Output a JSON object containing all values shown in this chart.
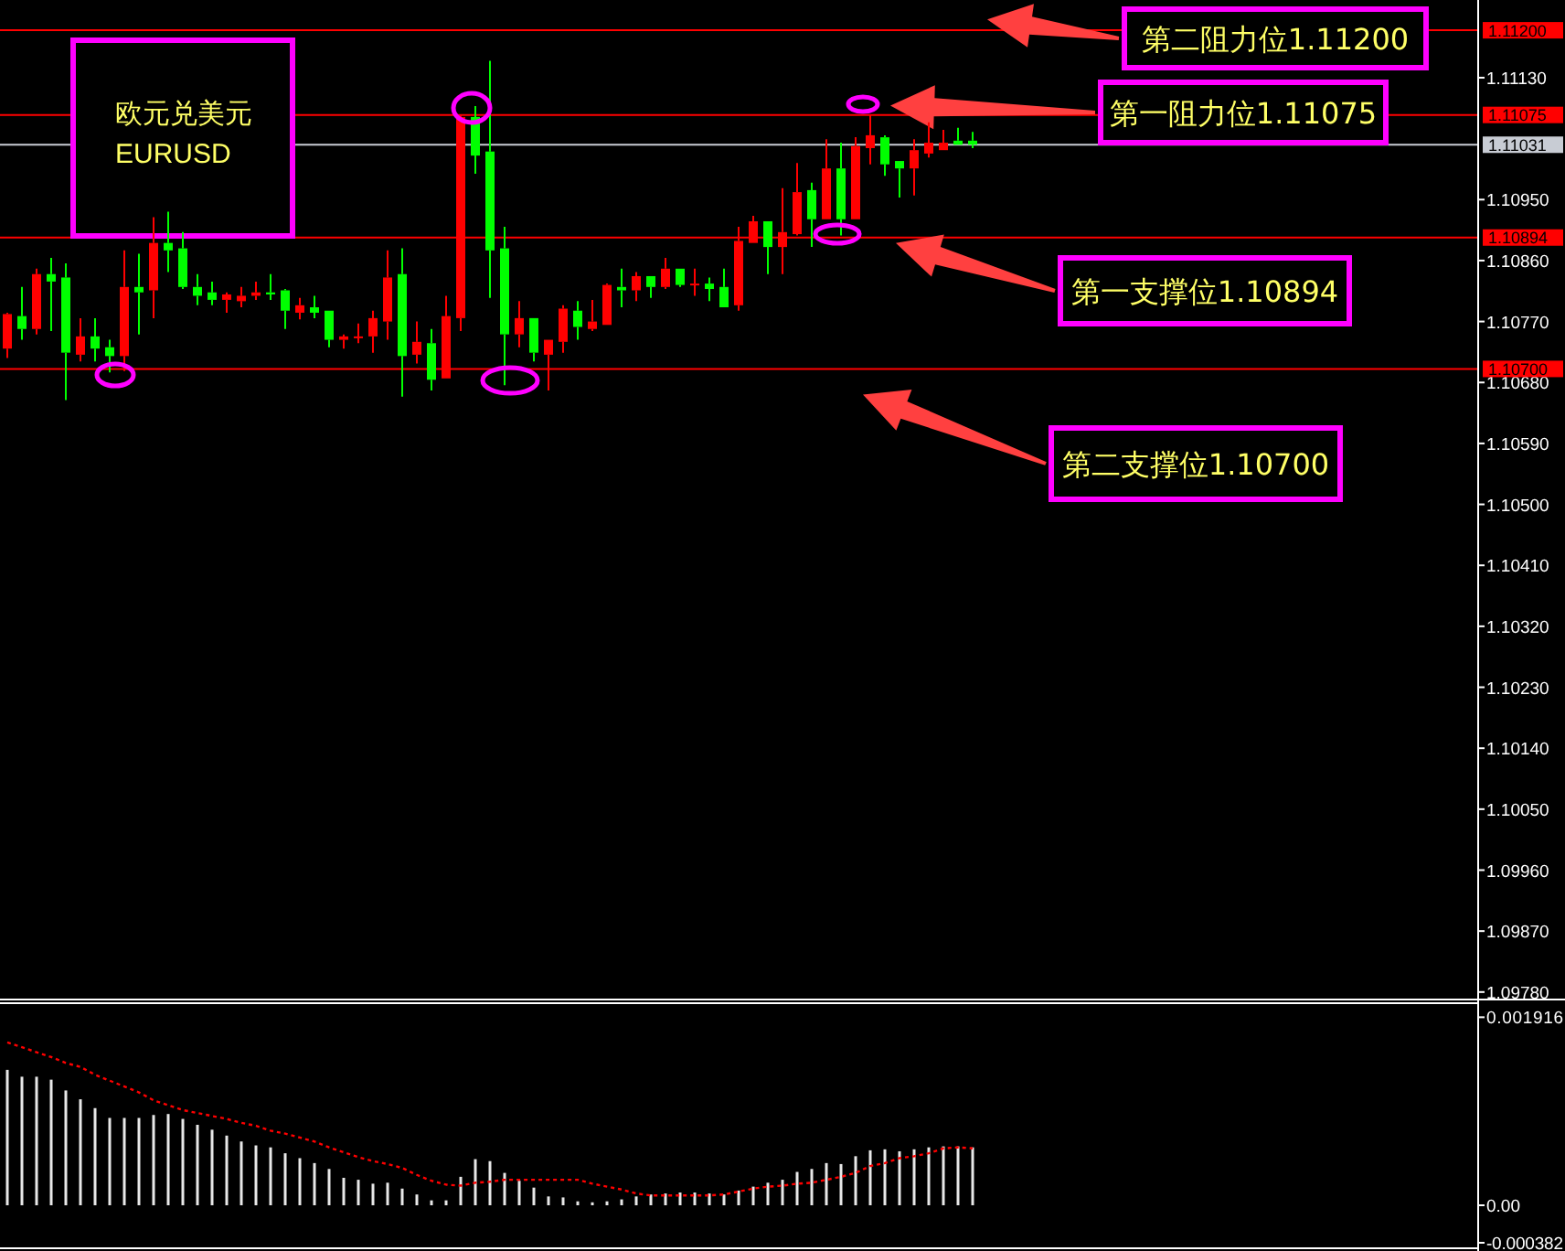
{
  "chart_data": [
    {
      "type": "candlestick",
      "title": "欧元兑美元",
      "subtitle": "EURUSD",
      "tick_labels": "y",
      "categories": [
        null,
        null,
        null,
        null,
        null,
        null,
        null,
        null,
        null,
        null,
        null,
        null,
        null,
        null,
        null,
        null,
        null,
        null,
        null,
        null,
        null,
        null,
        null,
        null,
        null,
        null,
        null,
        null,
        null,
        null,
        null,
        null,
        null,
        null,
        null,
        null,
        null,
        null,
        null,
        null,
        null,
        null,
        null,
        null,
        null,
        null,
        null,
        null,
        null,
        null,
        null,
        null,
        null,
        null,
        null,
        null,
        null,
        null,
        null,
        null,
        null,
        null,
        null,
        null,
        null,
        null,
        null,
        null,
        null,
        null,
        null,
        null,
        null,
        null,
        null,
        null,
        null,
        null,
        null,
        null,
        null,
        null,
        null,
        null,
        null,
        null,
        null,
        null,
        null,
        null,
        null,
        null,
        null,
        null,
        null,
        null,
        null,
        null,
        null,
        null,
        null
      ],
      "ohlc": [
        [
          1.1073,
          1.10783,
          1.10716,
          1.10781
        ],
        [
          1.10778,
          1.10821,
          1.10743,
          1.10759
        ],
        [
          1.10759,
          1.10848,
          1.10751,
          1.1084
        ],
        [
          1.1084,
          1.10864,
          1.10756,
          1.10829
        ],
        [
          1.10835,
          1.10856,
          1.10654,
          1.10724
        ],
        [
          1.10721,
          1.10775,
          1.10711,
          1.10748
        ],
        [
          1.10748,
          1.10775,
          1.10711,
          1.1073
        ],
        [
          1.10732,
          1.10743,
          1.10695,
          1.10719
        ],
        [
          1.10719,
          1.10875,
          1.10697,
          1.10821
        ],
        [
          1.10821,
          1.1087,
          1.10751,
          1.10813
        ],
        [
          1.10816,
          1.10924,
          1.10775,
          1.10886
        ],
        [
          1.10886,
          1.10932,
          1.10843,
          1.10875
        ],
        [
          1.10878,
          1.10902,
          1.10818,
          1.10821
        ],
        [
          1.10821,
          1.1084,
          1.10794,
          1.10808
        ],
        [
          1.10813,
          1.10829,
          1.10794,
          1.10802
        ],
        [
          1.10802,
          1.10813,
          1.10783,
          1.1081
        ],
        [
          1.108,
          1.10821,
          1.10791,
          1.10808
        ],
        [
          1.10808,
          1.10829,
          1.10802,
          1.10813
        ],
        [
          1.10813,
          1.1084,
          1.10802,
          1.1081
        ],
        [
          1.10816,
          1.10818,
          1.10759,
          1.10786
        ],
        [
          1.10783,
          1.10805,
          1.10773,
          1.10794
        ],
        [
          1.10791,
          1.10808,
          1.10775,
          1.10783
        ],
        [
          1.10786,
          1.10786,
          1.10732,
          1.10743
        ],
        [
          1.10743,
          1.10751,
          1.1073,
          1.10748
        ],
        [
          1.10746,
          1.10767,
          1.10738,
          1.10748
        ],
        [
          1.10748,
          1.10786,
          1.10724,
          1.10775
        ],
        [
          1.1077,
          1.10875,
          1.10743,
          1.10835
        ],
        [
          1.1084,
          1.10878,
          1.10659,
          1.10719
        ],
        [
          1.10721,
          1.1077,
          1.10708,
          1.1074
        ],
        [
          1.10738,
          1.10759,
          1.10668,
          1.10684
        ],
        [
          1.10686,
          1.10808,
          1.10686,
          1.10778
        ],
        [
          1.10775,
          1.11075,
          1.10756,
          1.11072
        ],
        [
          1.11072,
          1.11088,
          1.10988,
          1.11015
        ],
        [
          1.11021,
          1.11155,
          1.10805,
          1.10875
        ],
        [
          1.10878,
          1.1091,
          1.10676,
          1.10751
        ],
        [
          1.10751,
          1.108,
          1.10732,
          1.10775
        ],
        [
          1.10775,
          1.10775,
          1.10711,
          1.10724
        ],
        [
          1.10721,
          1.10743,
          1.10668,
          1.10743
        ],
        [
          1.1074,
          1.10794,
          1.10724,
          1.10789
        ],
        [
          1.10786,
          1.108,
          1.10743,
          1.10762
        ],
        [
          1.10759,
          1.10802,
          1.10756,
          1.1077
        ],
        [
          1.10765,
          1.10826,
          1.10765,
          1.10824
        ],
        [
          1.10821,
          1.10848,
          1.10791,
          1.10816
        ],
        [
          1.10816,
          1.10843,
          1.108,
          1.10837
        ],
        [
          1.10837,
          1.10837,
          1.10805,
          1.10821
        ],
        [
          1.10821,
          1.10864,
          1.10818,
          1.10848
        ],
        [
          1.10848,
          1.10848,
          1.10821,
          1.10824
        ],
        [
          1.10824,
          1.10848,
          1.10808,
          1.10826
        ],
        [
          1.10826,
          1.10835,
          1.108,
          1.10818
        ],
        [
          1.10821,
          1.10848,
          1.10791,
          1.10791
        ],
        [
          1.10794,
          1.1091,
          1.10786,
          1.10889
        ],
        [
          1.10886,
          1.10926,
          1.10886,
          1.10918
        ],
        [
          1.10918,
          1.10918,
          1.1084,
          1.1088
        ],
        [
          1.1088,
          1.10967,
          1.1084,
          1.10902
        ],
        [
          1.10899,
          1.11004,
          1.10897,
          1.10961
        ],
        [
          1.10964,
          1.10975,
          1.1088,
          1.10921
        ],
        [
          1.10921,
          1.11039,
          1.10921,
          1.10996
        ],
        [
          1.10996,
          1.11034,
          1.10897,
          1.10921
        ],
        [
          1.10921,
          1.11042,
          1.10921,
          1.11029
        ],
        [
          1.11026,
          1.11075,
          1.11002,
          1.11045
        ],
        [
          1.11042,
          1.11045,
          1.10985,
          1.11002
        ],
        [
          1.11007,
          1.11007,
          1.10953,
          1.10996
        ],
        [
          1.10996,
          1.11039,
          1.10956,
          1.11023
        ],
        [
          1.11018,
          1.11064,
          1.11012,
          1.11034
        ],
        [
          1.11023,
          1.11053,
          1.11023,
          1.11034
        ],
        [
          1.11037,
          1.11056,
          1.11031,
          1.11031
        ],
        [
          1.11037,
          1.1105,
          1.11026,
          1.11031
        ],
        null,
        null,
        null,
        null,
        null,
        null,
        null,
        null,
        null,
        null,
        null,
        null,
        null,
        null,
        null,
        null,
        null,
        null,
        null,
        null,
        null,
        null,
        null,
        null,
        null,
        null,
        null,
        null,
        null,
        null,
        null,
        null,
        null,
        null
      ],
      "colors": [
        "#ff0000",
        "#00ff00",
        "#ff0000",
        "#00ff00",
        "#00ff00",
        "#ff0000",
        "#00ff00",
        "#00ff00",
        "#ff0000",
        "#00ff00",
        "#ff0000",
        "#00ff00",
        "#00ff00",
        "#00ff00",
        "#00ff00",
        "#ff0000",
        "#ff0000",
        "#ff0000",
        "#00ff00",
        "#00ff00",
        "#ff0000",
        "#00ff00",
        "#00ff00",
        "#ff0000",
        "#ff0000",
        "#ff0000",
        "#ff0000",
        "#00ff00",
        "#ff0000",
        "#00ff00",
        "#ff0000",
        "#ff0000",
        "#00ff00",
        "#00ff00",
        "#00ff00",
        "#ff0000",
        "#00ff00",
        "#ff0000",
        "#ff0000",
        "#00ff00",
        "#ff0000",
        "#ff0000",
        "#00ff00",
        "#ff0000",
        "#00ff00",
        "#ff0000",
        "#00ff00",
        "#ff0000",
        "#00ff00",
        "#00ff00",
        "#ff0000",
        "#ff0000",
        "#00ff00",
        "#ff0000",
        "#ff0000",
        "#00ff00",
        "#ff0000",
        "#00ff00",
        "#ff0000",
        "#ff0000",
        "#00ff00",
        "#00ff00",
        "#ff0000",
        "#ff0000",
        "#ff0000",
        "#00ff00",
        "#00ff00",
        null,
        null,
        null,
        null,
        null,
        null,
        null,
        null,
        null,
        null,
        null,
        null,
        null,
        null,
        null,
        null,
        null,
        null,
        null,
        null,
        null,
        null,
        null,
        null,
        null,
        null,
        null,
        null,
        null,
        null,
        null,
        null,
        null,
        null
      ],
      "ylim": [
        1.09773,
        1.11242
      ],
      "yticks": [
        {
          "value": 1.0978,
          "label": "1.09780"
        },
        {
          "value": 1.0987,
          "label": "1.09870"
        },
        {
          "value": 1.0996,
          "label": "1.09960"
        },
        {
          "value": 1.1005,
          "label": "1.10050"
        },
        {
          "value": 1.1014,
          "label": "1.10140"
        },
        {
          "value": 1.1023,
          "label": "1.10230"
        },
        {
          "value": 1.1032,
          "label": "1.10320"
        },
        {
          "value": 1.1041,
          "label": "1.10410"
        },
        {
          "value": 1.105,
          "label": "1.10500"
        },
        {
          "value": 1.1059,
          "label": "1.10590"
        },
        {
          "value": 1.1068,
          "label": "1.10680"
        },
        {
          "value": 1.1077,
          "label": "1.10770"
        },
        {
          "value": 1.1086,
          "label": "1.10860"
        },
        {
          "value": 1.1095,
          "label": "1.10950"
        },
        {
          "value": 1.1113,
          "label": "1.11130"
        }
      ],
      "ref_lines": [
        {
          "axis": "y",
          "value": 1.112,
          "label": "1.11200",
          "color": "#ff0000"
        },
        {
          "axis": "y",
          "value": 1.11075,
          "label": "1.11075",
          "color": "#ff0000"
        },
        {
          "axis": "y",
          "value": 1.11031,
          "label": "1.11031",
          "color": "#c8ccd4"
        },
        {
          "axis": "y",
          "value": 1.10894,
          "label": "1.10894",
          "color": "#ff0000"
        },
        {
          "axis": "y",
          "value": 1.107,
          "label": "1.10700",
          "color": "#ff0000"
        }
      ],
      "annotations": [
        {
          "text": "第二阻力位1.11200",
          "y": 1.112
        },
        {
          "text": "第一阻力位1.11075",
          "y": 1.11075
        },
        {
          "text": "第一支撑位1.10894",
          "y": 1.10894
        },
        {
          "text": "第二支撑位1.10700",
          "y": 1.107
        }
      ]
    },
    {
      "type": "bar",
      "tick_labels": "y",
      "categories": [
        null,
        null,
        null,
        null,
        null,
        null,
        null,
        null,
        null,
        null,
        null,
        null,
        null,
        null,
        null,
        null,
        null,
        null,
        null,
        null,
        null,
        null,
        null,
        null,
        null,
        null,
        null,
        null,
        null,
        null,
        null,
        null,
        null,
        null,
        null,
        null,
        null,
        null,
        null,
        null,
        null,
        null,
        null,
        null,
        null,
        null,
        null,
        null,
        null,
        null,
        null,
        null,
        null,
        null,
        null,
        null,
        null,
        null,
        null,
        null,
        null,
        null,
        null,
        null,
        null,
        null,
        null,
        null,
        null,
        null,
        null,
        null,
        null,
        null,
        null,
        null,
        null,
        null,
        null,
        null,
        null,
        null,
        null,
        null,
        null,
        null,
        null,
        null,
        null,
        null,
        null,
        null,
        null,
        null,
        null,
        null,
        null,
        null,
        null,
        null,
        null
      ],
      "ylim": [
        -0.00041,
        0.00205
      ],
      "yticks": [
        0.001916,
        {
          "value": 0,
          "label": "0.00"
        },
        -0.000382
      ],
      "series": [
        {
          "type": "bar",
          "color": "#e8e8e8",
          "values": [
            0.00138,
            0.00131,
            0.00131,
            0.00128,
            0.00117,
            0.00108,
            0.00099,
            0.00089,
            0.00089,
            0.00089,
            0.00092,
            0.00093,
            0.00088,
            0.00082,
            0.00077,
            0.00071,
            0.00065,
            0.00061,
            0.00059,
            0.00053,
            0.00048,
            0.00043,
            0.00037,
            0.00028,
            0.00026,
            0.00022,
            0.00023,
            0.00017,
            0.00011,
            5e-05,
            5e-05,
            0.00029,
            0.00047,
            0.00045,
            0.00033,
            0.00025,
            0.00018,
            9e-05,
            8e-05,
            4e-05,
            3e-05,
            4e-05,
            6e-05,
            9e-05,
            0.00011,
            0.00012,
            0.00013,
            0.00013,
            0.00012,
            0.00011,
            0.00015,
            0.00019,
            0.00023,
            0.00026,
            0.00034,
            0.00037,
            0.00043,
            0.00042,
            0.0005,
            0.00056,
            0.00057,
            0.00055,
            0.00057,
            0.00059,
            0.0006,
            0.0006,
            0.00059,
            null,
            null,
            null,
            null,
            null,
            null,
            null,
            null,
            null,
            null,
            null,
            null,
            null,
            null,
            null,
            null,
            null,
            null,
            null,
            null,
            null,
            null,
            null,
            null,
            null,
            null,
            null,
            null,
            null,
            null,
            null,
            null,
            null,
            null
          ]
        },
        {
          "type": "line",
          "color": "#ff0000",
          "line_style": "dotted",
          "values": [
            0.00166,
            0.00161,
            0.00156,
            0.00151,
            0.00145,
            0.00141,
            0.00133,
            0.00127,
            0.00121,
            0.00115,
            0.00107,
            0.00102,
            0.00097,
            0.00094,
            0.00091,
            0.00088,
            0.00084,
            0.00081,
            0.00076,
            0.00073,
            0.00069,
            0.00065,
            0.00059,
            0.00054,
            0.00049,
            0.00045,
            0.00042,
            0.00038,
            0.00031,
            0.00025,
            0.00021,
            0.0002,
            0.00023,
            0.00024,
            0.00026,
            0.00026,
            0.00026,
            0.00026,
            0.00026,
            0.00026,
            0.00022,
            0.00019,
            0.00016,
            0.00012,
            0.0001,
            0.0001,
            0.0001,
            0.0001,
            0.0001,
            0.00011,
            0.00014,
            0.00017,
            0.00019,
            0.0002,
            0.00022,
            0.00023,
            0.00026,
            0.00029,
            0.00033,
            0.0004,
            0.00043,
            0.00048,
            0.0005,
            0.00053,
            0.00058,
            0.00059,
            0.00058,
            null,
            null,
            null,
            null,
            null,
            null,
            null,
            null,
            null,
            null,
            null,
            null,
            null,
            null,
            null,
            null,
            null,
            null,
            null,
            null,
            null,
            null,
            null,
            null,
            null,
            null,
            null,
            null,
            null,
            null,
            null,
            null,
            null,
            null
          ]
        }
      ]
    }
  ]
}
